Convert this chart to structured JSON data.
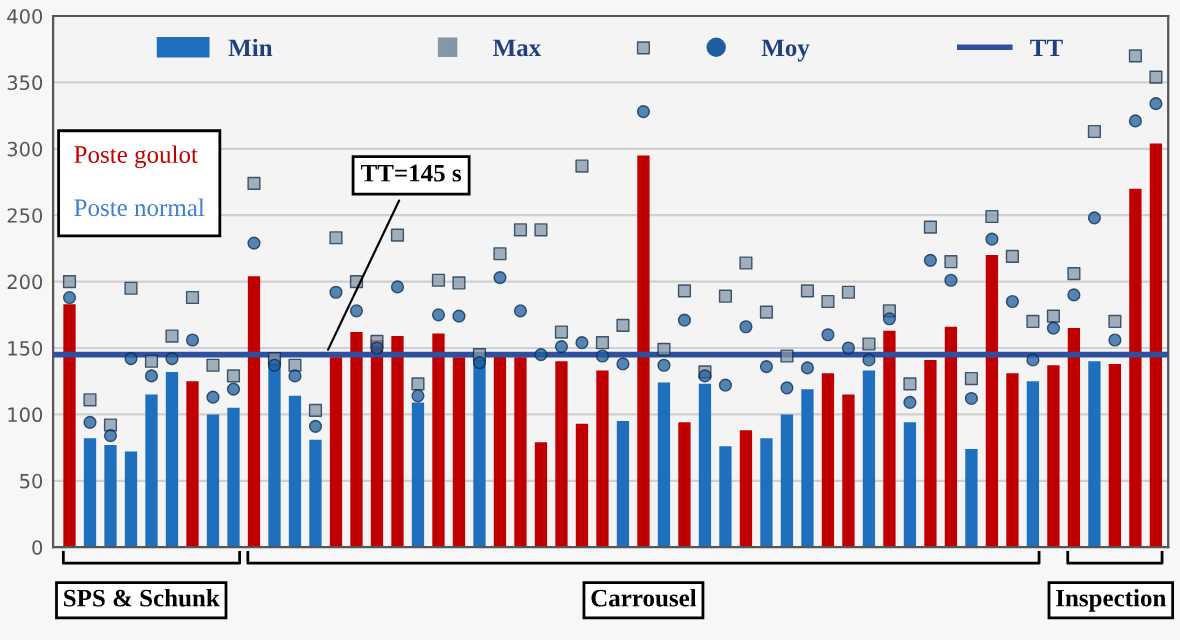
{
  "chart_data": {
    "type": "bar",
    "categories": [
      null,
      null,
      null,
      null,
      null,
      null,
      null,
      null,
      null,
      null,
      null,
      null,
      null,
      null,
      null,
      null,
      null,
      null,
      null,
      null,
      null,
      null,
      null,
      null,
      null,
      null,
      null,
      null,
      null,
      null,
      null,
      null,
      null,
      null,
      null,
      null,
      null,
      null,
      null,
      null,
      null,
      null,
      null,
      null,
      null,
      null,
      null,
      null,
      null,
      null,
      null,
      null,
      null,
      null
    ],
    "series": [
      {
        "name": "Min",
        "color": "#1f6fbf",
        "colors": [
          "#c00000",
          "#1f6fbf",
          "#1f6fbf",
          "#1f6fbf",
          "#1f6fbf",
          "#1f6fbf",
          "#c00000",
          "#1f6fbf",
          "#1f6fbf",
          "#c00000",
          "#1f6fbf",
          "#1f6fbf",
          "#1f6fbf",
          "#c00000",
          "#c00000",
          "#c00000",
          "#c00000",
          "#1f6fbf",
          "#c00000",
          "#c00000",
          "#1f6fbf",
          "#c00000",
          "#c00000",
          "#c00000",
          "#c00000",
          "#c00000",
          "#c00000",
          "#1f6fbf",
          "#c00000",
          "#1f6fbf",
          "#c00000",
          "#1f6fbf",
          "#1f6fbf",
          "#c00000",
          "#1f6fbf",
          "#1f6fbf",
          "#1f6fbf",
          "#c00000",
          "#c00000",
          "#1f6fbf",
          "#c00000",
          "#1f6fbf",
          "#c00000",
          "#c00000",
          "#1f6fbf",
          "#c00000",
          "#c00000",
          "#1f6fbf",
          "#c00000",
          "#c00000",
          "#1f6fbf",
          "#c00000",
          "#c00000",
          "#c00000"
        ],
        "values": [
          183,
          82,
          77,
          72,
          115,
          132,
          125,
          100,
          105,
          204,
          143,
          114,
          81,
          143,
          162,
          156,
          159,
          109,
          161,
          143,
          143,
          147,
          143,
          79,
          140,
          93,
          133,
          95,
          295,
          124,
          94,
          123,
          76,
          88,
          82,
          100,
          119,
          131,
          115,
          133,
          163,
          94,
          141,
          166,
          74,
          220,
          131,
          125,
          137,
          165,
          140,
          138,
          270,
          304
        ]
      },
      {
        "name": "Max",
        "type": "scatter",
        "marker": "square",
        "color": "#8497a8",
        "values": [
          200,
          111,
          92,
          195,
          140,
          159,
          188,
          137,
          129,
          274,
          142,
          137,
          103,
          233,
          200,
          155,
          235,
          123,
          201,
          199,
          145,
          221,
          239,
          239,
          162,
          287,
          154,
          167,
          376,
          149,
          193,
          132,
          189,
          214,
          177,
          144,
          193,
          185,
          192,
          153,
          178,
          123,
          241,
          215,
          127,
          249,
          219,
          170,
          174,
          206,
          313,
          170,
          370,
          354
        ]
      },
      {
        "name": "Moy",
        "type": "scatter",
        "marker": "circle",
        "color": "#1f5f9f",
        "values": [
          188,
          94,
          84,
          142,
          129,
          142,
          156,
          113,
          119,
          229,
          137,
          129,
          91,
          192,
          178,
          150,
          196,
          114,
          175,
          174,
          139,
          203,
          178,
          145,
          151,
          154,
          144,
          138,
          328,
          137,
          171,
          129,
          122,
          166,
          136,
          120,
          135,
          160,
          150,
          141,
          172,
          109,
          216,
          201,
          112,
          232,
          185,
          141,
          165,
          190,
          248,
          156,
          321,
          334
        ]
      }
    ],
    "ref_lines": [
      {
        "axis": "y",
        "value": 145,
        "label": "TT",
        "color": "#2f4f9f"
      }
    ],
    "ylim": [
      0,
      400
    ],
    "yticks": [
      0,
      50,
      100,
      150,
      200,
      250,
      300,
      350,
      400
    ],
    "grid": "y",
    "legend": "top",
    "annotations": [
      "TT=145 s",
      "Poste goulot",
      "Poste normal",
      "SPS & Schunk",
      "Carrousel",
      "Inspection"
    ]
  }
}
